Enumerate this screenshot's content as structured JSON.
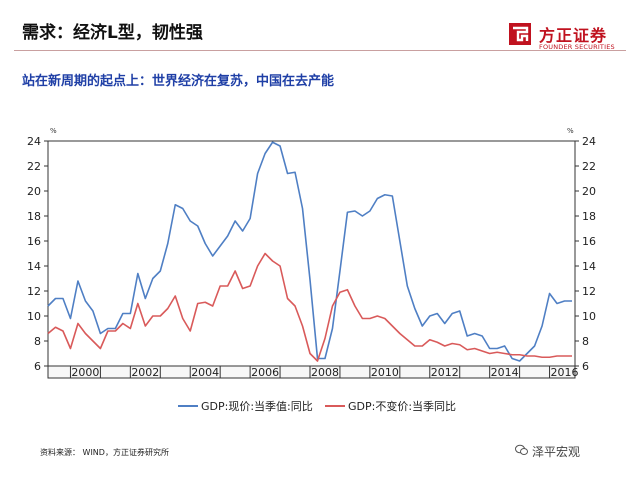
{
  "header": {
    "title": "需求：经济L型，韧性强",
    "subtitle": "站在新周期的起点上：世界经济在复苏，中国在去产能"
  },
  "logo": {
    "name_cn": "方正证券",
    "name_en": "FOUNDER SECURITIES",
    "icon": "founder-logo-mark"
  },
  "chart_data": {
    "type": "line",
    "x": [
      1999.25,
      1999.5,
      1999.75,
      2000.0,
      2000.25,
      2000.5,
      2000.75,
      2001.0,
      2001.25,
      2001.5,
      2001.75,
      2002.0,
      2002.25,
      2002.5,
      2002.75,
      2003.0,
      2003.25,
      2003.5,
      2003.75,
      2004.0,
      2004.25,
      2004.5,
      2004.75,
      2005.0,
      2005.25,
      2005.5,
      2005.75,
      2006.0,
      2006.25,
      2006.5,
      2006.75,
      2007.0,
      2007.25,
      2007.5,
      2007.75,
      2008.0,
      2008.25,
      2008.5,
      2008.75,
      2009.0,
      2009.25,
      2009.5,
      2009.75,
      2010.0,
      2010.25,
      2010.5,
      2010.75,
      2011.0,
      2011.25,
      2011.5,
      2011.75,
      2012.0,
      2012.25,
      2012.5,
      2012.75,
      2013.0,
      2013.25,
      2013.5,
      2013.75,
      2014.0,
      2014.25,
      2014.5,
      2014.75,
      2015.0,
      2015.25,
      2015.5,
      2015.75,
      2016.0,
      2016.25,
      2016.5,
      2016.75
    ],
    "series": [
      {
        "name": "GDP:现价:当季值:同比",
        "color": "#4f7fc4",
        "values": [
          10.8,
          11.4,
          11.4,
          9.8,
          12.8,
          11.2,
          10.4,
          8.6,
          9.0,
          9.0,
          10.2,
          10.2,
          13.4,
          11.4,
          13.0,
          13.6,
          15.8,
          18.9,
          18.6,
          17.6,
          17.2,
          15.8,
          14.8,
          15.6,
          16.4,
          17.6,
          16.8,
          17.8,
          21.4,
          23.0,
          23.9,
          23.6,
          21.4,
          21.5,
          18.6,
          12.9,
          6.6,
          6.6,
          9.0,
          13.6,
          18.3,
          18.4,
          18.0,
          18.4,
          19.4,
          19.7,
          19.6,
          16.0,
          12.4,
          10.6,
          9.2,
          10.0,
          10.2,
          9.4,
          10.2,
          10.4,
          8.4,
          8.6,
          8.4,
          7.4,
          7.4,
          7.6,
          6.6,
          6.4,
          7.0,
          7.6,
          9.2,
          11.8,
          11.0,
          11.2,
          11.2
        ],
        "values_note": "estimated from chart"
      },
      {
        "name": "GDP:不变价:当季同比",
        "color": "#d95a5a",
        "values": [
          8.6,
          9.1,
          8.8,
          7.4,
          9.4,
          8.6,
          8.0,
          7.4,
          8.8,
          8.8,
          9.4,
          9.0,
          11.0,
          9.2,
          10.0,
          10.0,
          10.6,
          11.6,
          9.8,
          8.8,
          11.0,
          11.1,
          10.8,
          12.4,
          12.4,
          13.6,
          12.2,
          12.4,
          14.0,
          15.0,
          14.4,
          14.0,
          11.4,
          10.8,
          9.2,
          7.0,
          6.4,
          8.2,
          10.8,
          11.9,
          12.1,
          10.8,
          9.8,
          9.8,
          10.0,
          9.8,
          9.2,
          8.6,
          8.1,
          7.6,
          7.6,
          8.1,
          7.9,
          7.6,
          7.8,
          7.7,
          7.3,
          7.4,
          7.2,
          7.0,
          7.1,
          7.0,
          6.9,
          6.9,
          6.8,
          6.8,
          6.7,
          6.7,
          6.8,
          6.8,
          6.8
        ]
      }
    ],
    "xlim": [
      1999.25,
      2016.85
    ],
    "ylim": [
      6,
      24
    ],
    "x_ticks": [
      2000,
      2002,
      2004,
      2006,
      2008,
      2010,
      2012,
      2014,
      2016
    ],
    "x_tick_labels": [
      "2000",
      "2002",
      "2004",
      "2006",
      "2008",
      "2010",
      "2012",
      "2014",
      "2016"
    ],
    "y_ticks": [
      6,
      8,
      10,
      12,
      14,
      16,
      18,
      20,
      22,
      24
    ],
    "y_tick_labels": [
      "6",
      "8",
      "10",
      "12",
      "14",
      "16",
      "18",
      "20",
      "22",
      "24"
    ],
    "y_unit_left": "%",
    "y_unit_right": "%",
    "legend_placement": "bottom-center",
    "gridlines": false
  },
  "footer": {
    "source": "资料来源： WIND，方正证券研究所",
    "watermark": "泽平宏观",
    "watermark_icon": "wechat-icon"
  }
}
